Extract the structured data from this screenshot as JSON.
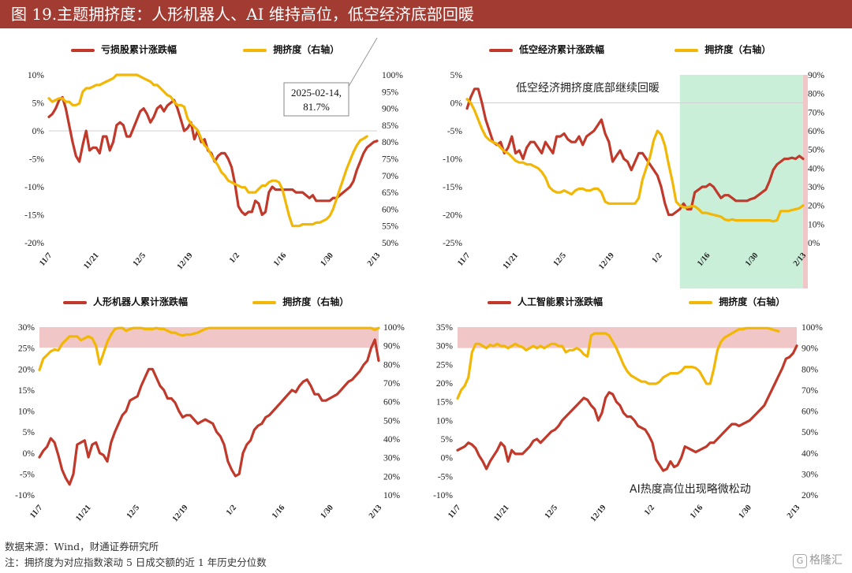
{
  "title": "图 19.主题拥挤度：人形机器人、AI 维持高位，低空经济底部回暖",
  "footer": {
    "source": "数据来源：Wind，财通证券研究所",
    "note": "注：拥挤度为对应指数滚动 5 日成交额的近 1 年历史分位数"
  },
  "watermark": "格隆汇",
  "colors": {
    "red": "#c0392b",
    "yellow": "#f2b705",
    "green_band": "#c9efd9",
    "red_band": "#f1c6c6",
    "title_bg": "#a23b32"
  },
  "chart_data": [
    {
      "type": "line",
      "x_ticks": [
        "11/7",
        "11/21",
        "12/5",
        "12/19",
        "1/2",
        "1/16",
        "1/30",
        "2/13"
      ],
      "left_axis": {
        "ticks": [
          "10%",
          "5%",
          "0%",
          "-5%",
          "-10%",
          "-15%",
          "-20%"
        ],
        "ylim": [
          -20,
          10
        ]
      },
      "right_axis": {
        "ticks": [
          "100%",
          "95%",
          "90%",
          "85%",
          "80%",
          "75%",
          "70%",
          "65%",
          "60%",
          "55%",
          "50%"
        ],
        "ylim": [
          50,
          100
        ]
      },
      "zero_line": 0,
      "series": [
        {
          "name": "亏损股累计涨跌幅",
          "axis": "left",
          "color": "#c0392b",
          "values": [
            2.5,
            3,
            4,
            5.5,
            6,
            4,
            1,
            -2,
            -4.5,
            -5.5,
            -2.5,
            0,
            -3.5,
            -3,
            -3,
            -4,
            -1,
            -1,
            -3.5,
            -2,
            1,
            1.5,
            1,
            -1,
            -1,
            0.5,
            2,
            3.5,
            4,
            3,
            1.5,
            2.5,
            4,
            4.5,
            3.5,
            4.5,
            5,
            5.5,
            4,
            2,
            0,
            0.5,
            1.5,
            -1.5,
            0,
            -2,
            -1.5,
            -3.5,
            -4,
            -5.5,
            -4.5,
            -4,
            -4,
            -5,
            -6.5,
            -9.5,
            -13.5,
            -14.5,
            -15,
            -14.5,
            -14.5,
            -12.5,
            -13,
            -15,
            -14.5,
            -11,
            -10,
            -10.5,
            -10.5,
            -10.5,
            -10.5,
            -10.5,
            -10.5,
            -11,
            -11,
            -11,
            -11.5,
            -12,
            -11.5,
            -12.5,
            -12.5,
            -12.5,
            -12.5,
            -12.5,
            -12,
            -12,
            -11.5,
            -11,
            -10.5,
            -10,
            -9,
            -7,
            -5.5,
            -4,
            -3,
            -2.5,
            -2,
            -1.8
          ]
        },
        {
          "name": "拥挤度（右轴）",
          "axis": "right",
          "color": "#f2b705",
          "values": [
            93,
            92,
            92.5,
            93,
            93,
            92,
            92,
            91,
            91,
            91.5,
            95,
            96,
            96,
            96.5,
            97,
            97,
            97.5,
            98,
            98.5,
            99,
            100,
            100,
            100,
            100,
            100,
            100,
            100,
            99.5,
            99,
            98.5,
            98,
            97,
            97,
            96,
            95,
            94,
            93.5,
            92,
            91,
            91,
            90.5,
            87,
            85.5,
            84.5,
            83.5,
            81,
            79,
            78,
            76,
            74.5,
            73,
            71,
            70,
            68.5,
            68,
            67.5,
            67,
            66.5,
            66.5,
            65,
            65,
            65,
            66,
            67,
            67,
            68,
            68.5,
            68.5,
            68,
            66,
            62,
            58,
            55,
            55,
            55,
            55.5,
            55.5,
            55.5,
            55.5,
            56,
            56,
            56.5,
            57,
            58,
            60,
            63,
            66,
            69,
            72,
            74.5,
            77,
            79,
            80.5,
            81,
            81.7
          ]
        }
      ],
      "annotation": {
        "text_line1": "2025-02-14,",
        "text_line2": "81.7%"
      }
    },
    {
      "type": "line",
      "x_ticks": [
        "11/7",
        "11/21",
        "12/5",
        "12/19",
        "1/2",
        "1/16",
        "1/30",
        "2/13"
      ],
      "left_axis": {
        "ticks": [
          "5%",
          "0%",
          "-5%",
          "-10%",
          "-15%",
          "-20%",
          "-25%"
        ],
        "ylim": [
          -25,
          5
        ]
      },
      "right_axis": {
        "ticks": [
          "90%",
          "80%",
          "70%",
          "60%",
          "50%",
          "40%",
          "30%",
          "20%",
          "10%",
          "0%"
        ],
        "ylim": [
          0,
          90
        ]
      },
      "zero_line": 0,
      "series": [
        {
          "name": "低空经济累计涨跌幅",
          "axis": "left",
          "color": "#c0392b",
          "values": [
            -1,
            1,
            2.5,
            2.5,
            0,
            -3,
            -5,
            -7,
            -7.5,
            -7,
            -9,
            -8,
            -6,
            -9,
            -8.5,
            -10,
            -8,
            -7,
            -7,
            -8,
            -9,
            -7,
            -8,
            -9,
            -6,
            -6,
            -5.5,
            -6.5,
            -7,
            -7,
            -6,
            -7.5,
            -6,
            -5.5,
            -5,
            -4,
            -3,
            -5.5,
            -7,
            -10.5,
            -9.5,
            -8.5,
            -10,
            -10.5,
            -12,
            -10.5,
            -9,
            -9,
            -10,
            -11,
            -12,
            -13,
            -15,
            -18,
            -20,
            -20,
            -19.5,
            -19,
            -18,
            -19,
            -19,
            -16,
            -15.5,
            -15,
            -15,
            -14.5,
            -15,
            -16,
            -17,
            -16.5,
            -16.5,
            -17,
            -17.5,
            -17.5,
            -17.5,
            -17.5,
            -17.2,
            -17,
            -16.5,
            -16,
            -15.5,
            -14,
            -12,
            -11,
            -10.5,
            -10,
            -10,
            -9.8,
            -10,
            -9.5,
            -10
          ]
        },
        {
          "name": "拥挤度（右轴）",
          "axis": "right",
          "color": "#f2b705",
          "values": [
            77,
            75,
            71,
            66,
            61,
            57,
            55,
            54,
            53,
            51,
            49,
            48,
            46,
            44,
            43,
            43,
            42,
            42,
            41,
            40,
            38,
            35,
            30,
            28,
            27,
            27,
            28,
            27,
            26,
            28,
            29,
            29,
            28,
            28,
            29,
            29,
            27,
            22,
            21,
            21,
            21,
            21,
            21,
            21,
            21,
            21,
            24,
            34,
            40,
            46,
            55,
            60,
            58,
            52,
            42,
            33,
            22,
            20,
            19,
            19,
            19.5,
            19.5,
            18,
            16,
            16,
            15.5,
            15,
            14.5,
            14,
            12.5,
            12,
            12.5,
            12,
            12,
            12,
            12,
            12,
            12,
            12,
            12,
            12,
            12,
            11.5,
            12,
            17,
            17,
            17,
            17.5,
            18,
            18.5,
            20
          ]
        }
      ],
      "highlight": {
        "start_index": 57,
        "end_index": 90,
        "color": "#c9efd9"
      },
      "right_band_color": "#f1c6c6",
      "annotation": {
        "text_line1": "低空经济拥挤度底部继续回暖"
      }
    },
    {
      "type": "line",
      "x_ticks": [
        "11/7",
        "11/21",
        "12/5",
        "12/19",
        "1/2",
        "1/16",
        "1/30",
        "2/13"
      ],
      "left_axis": {
        "ticks": [
          "30%",
          "25%",
          "20%",
          "15%",
          "10%",
          "5%",
          "0%",
          "-5%",
          "-10%"
        ],
        "ylim": [
          -10,
          30
        ]
      },
      "right_axis": {
        "ticks": [
          "100%",
          "90%",
          "80%",
          "70%",
          "60%",
          "50%",
          "40%",
          "30%",
          "20%",
          "10%"
        ],
        "ylim": [
          10,
          100
        ]
      },
      "zero_line": null,
      "series": [
        {
          "name": "人形机器人累计涨跌幅",
          "axis": "left",
          "color": "#c0392b",
          "values": [
            -1,
            0.5,
            1.5,
            3.5,
            2.5,
            -0.5,
            -4,
            -6,
            -7.5,
            -5,
            2,
            2.5,
            3,
            -1,
            2,
            2.5,
            0,
            -0.5,
            -2,
            2.5,
            5,
            7,
            9,
            10,
            12.5,
            13,
            13.5,
            16,
            18,
            20,
            20,
            18,
            16,
            15,
            13,
            13,
            12,
            10,
            8.5,
            9,
            9,
            8,
            7,
            7.5,
            8,
            7.5,
            7,
            5,
            4,
            2,
            -2,
            -4,
            -5.5,
            -5,
            0,
            2,
            3,
            5.5,
            6.5,
            7,
            8.5,
            9,
            10,
            11,
            12,
            13,
            14,
            15,
            14.5,
            16,
            17,
            17.5,
            16,
            14,
            14,
            12.5,
            12.5,
            13,
            13.5,
            14,
            15,
            16,
            17,
            17.5,
            18.5,
            19.5,
            21,
            22,
            25,
            27,
            22
          ]
        },
        {
          "name": "拥挤度（右轴）",
          "axis": "right",
          "color": "#f2b705",
          "values": [
            77,
            83,
            85,
            87,
            88,
            87.5,
            91,
            93,
            95,
            95,
            95,
            93,
            94,
            95,
            94,
            90,
            80,
            86,
            92,
            96,
            99,
            99.5,
            99.5,
            98,
            99,
            99.5,
            99.5,
            99.5,
            99,
            99,
            99,
            99.5,
            99,
            99,
            98,
            97,
            97,
            96,
            95.5,
            96,
            96,
            96.5,
            97,
            98,
            99,
            99.5,
            99.5,
            99.5,
            99.5,
            99.5,
            99.5,
            99.5,
            99.5,
            99.5,
            99.5,
            99.5,
            99.5,
            99.5,
            99.5,
            99.5,
            99.5,
            99.5,
            99.5,
            99.5,
            99.5,
            99.5,
            99.5,
            99.5,
            99.5,
            99.5,
            99.5,
            99.5,
            99.5,
            99.5,
            99.5,
            99.5,
            99.5,
            99.5,
            99.5,
            99.5,
            99.5,
            99.5,
            99.5,
            99.5,
            99.5,
            99.5,
            99.5,
            99.5,
            99.5,
            98.5,
            99.5
          ]
        }
      ],
      "band": {
        "right_from": 89,
        "right_to": 100,
        "color": "#f1c6c6"
      }
    },
    {
      "type": "line",
      "x_ticks": [
        "11/7",
        "11/21",
        "12/5",
        "12/19",
        "1/2",
        "1/16",
        "1/30",
        "2/13"
      ],
      "left_axis": {
        "ticks": [
          "35%",
          "30%",
          "25%",
          "20%",
          "15%",
          "10%",
          "5%",
          "0%",
          "-5%",
          "-10%"
        ],
        "ylim": [
          -10,
          35
        ]
      },
      "right_axis": {
        "ticks": [
          "100%",
          "90%",
          "80%",
          "70%",
          "60%",
          "50%",
          "40%",
          "30%",
          "20%"
        ],
        "ylim": [
          20,
          100
        ]
      },
      "zero_line": null,
      "series": [
        {
          "name": "人工智能累计涨跌幅",
          "axis": "left",
          "color": "#c0392b",
          "values": [
            2,
            2.5,
            3,
            4,
            3.5,
            2.5,
            0.5,
            -1,
            -3,
            -1,
            0.5,
            2,
            4,
            3,
            -1,
            2,
            1,
            1,
            1,
            2,
            3,
            4.5,
            5,
            4,
            5,
            6,
            7,
            7.5,
            8.5,
            10,
            11,
            12,
            13,
            14,
            15,
            16,
            15.5,
            14,
            13,
            10,
            12,
            16,
            17.5,
            17,
            15,
            14,
            12,
            11,
            11,
            10,
            8.5,
            8,
            7.5,
            6,
            4,
            -0.5,
            -2,
            -3.5,
            -3,
            -1,
            -2.5,
            -2,
            0,
            3,
            2.5,
            2,
            1.5,
            2,
            2.5,
            3,
            4,
            4,
            5,
            6,
            7,
            8,
            9,
            9,
            8.5,
            9,
            9.5,
            10,
            11,
            12,
            13,
            14,
            16,
            18,
            20,
            22,
            24,
            26.5,
            27,
            28,
            30
          ]
        },
        {
          "name": "拥挤度（右轴）",
          "axis": "right",
          "color": "#f2b705",
          "values": [
            66,
            70,
            72,
            76,
            88,
            92,
            92,
            91,
            90,
            91.5,
            91,
            92,
            91,
            91,
            90,
            91,
            92,
            91,
            90.5,
            89,
            90,
            91,
            90,
            91,
            90,
            91,
            92,
            92,
            91,
            91,
            88,
            89,
            89,
            90,
            89,
            87,
            86,
            96,
            97,
            97,
            97,
            97,
            96,
            93,
            90,
            86,
            82,
            79,
            77,
            76,
            75,
            74,
            74,
            73,
            73,
            73,
            74,
            76,
            77,
            78,
            78,
            78,
            79,
            81,
            81,
            81,
            80.5,
            79,
            76,
            73,
            73,
            80,
            89,
            93,
            95,
            96,
            97,
            98,
            99,
            99,
            99.5,
            99.5,
            99.5,
            99.5,
            99.5,
            99.5,
            99.5,
            99,
            98.5,
            98
          ]
        }
      ],
      "band": {
        "right_from": 90,
        "right_to": 100,
        "color": "#f1c6c6"
      },
      "annotation": {
        "text_line1": "AI热度高位出现略微松动"
      }
    }
  ]
}
